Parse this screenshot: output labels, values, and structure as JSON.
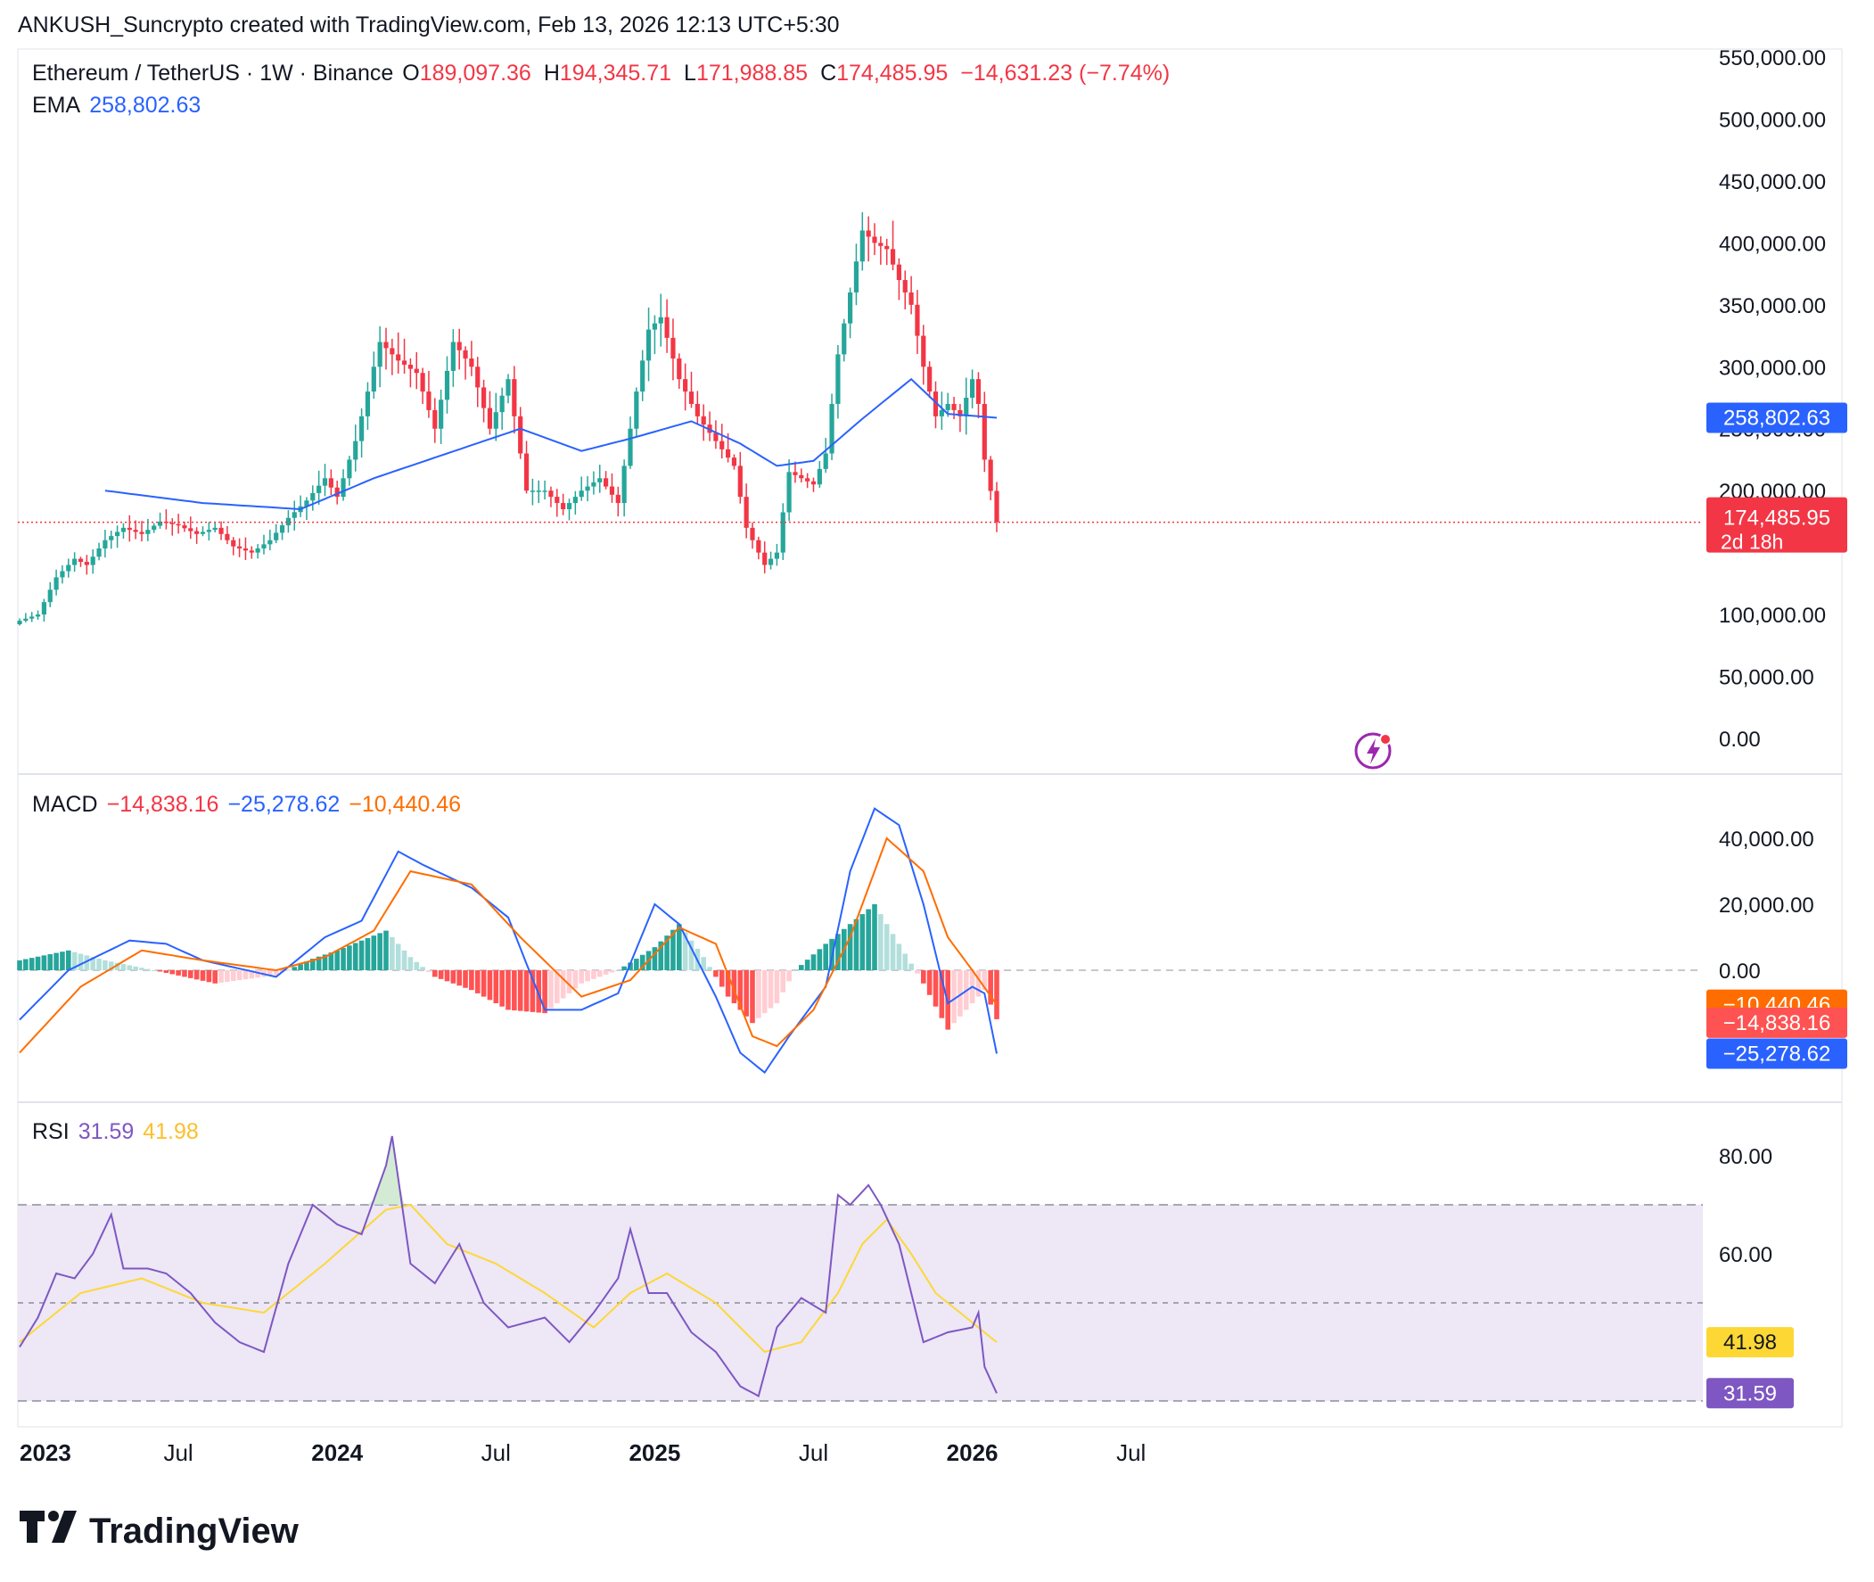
{
  "header": {
    "credit": "ANKUSH_Suncrypto created with TradingView.com, Feb 13, 2026 12:13 UTC+5:30"
  },
  "symbol": {
    "title": "Ethereum / TetherUS · 1W · Binance",
    "open_label": "O",
    "open": "189,097.36",
    "high_label": "H",
    "high": "194,345.71",
    "low_label": "L",
    "low": "171,988.85",
    "close_label": "C",
    "close": "174,485.95",
    "change": "−14,631.23 (−7.74%)"
  },
  "ema_legend": {
    "label": "EMA",
    "value": "258,802.63"
  },
  "macd_legend": {
    "label": "MACD",
    "hist": "−14,838.16",
    "macd": "−25,278.62",
    "signal": "−10,440.46"
  },
  "rsi_legend": {
    "label": "RSI",
    "rsi": "31.59",
    "ma": "41.98"
  },
  "price_badges": {
    "ema": "258,802.63",
    "last": "174,485.95",
    "countdown": "2d 18h"
  },
  "macd_badges": {
    "signal": "−10,440.46",
    "hist": "−14,838.16",
    "macd": "−25,278.62"
  },
  "rsi_badges": {
    "ma": "41.98",
    "rsi": "31.59"
  },
  "brand": {
    "name": "TradingView"
  },
  "colors": {
    "up": "#26a69a",
    "down": "#f23645",
    "ema": "#2962ff",
    "macd": "#2962ff",
    "signal": "#ff6d00",
    "rsi": "#7e57c2",
    "rsi_ma": "#fdd835",
    "rsi_band": "#ede7f6",
    "hist_up_strong": "#26a69a",
    "hist_up_weak": "#b2dfdb",
    "hist_down_strong": "#ff5252",
    "hist_down_weak": "#ffcdd2"
  },
  "chart_data": [
    {
      "type": "candlestick",
      "title": "Ethereum / TetherUS · 1W · Binance",
      "ylim": [
        0,
        550000
      ],
      "y_ticks": [
        "550,000.00",
        "500,000.00",
        "450,000.00",
        "400,000.00",
        "350,000.00",
        "300,000.00",
        "250,000.00",
        "200,000.00",
        "100,000.00",
        "50,000.00",
        "0.00"
      ],
      "y_tick_values": [
        550000,
        500000,
        450000,
        400000,
        350000,
        300000,
        250000,
        200000,
        100000,
        50000,
        0
      ],
      "x_ticks": [
        "2023",
        "Jul",
        "2024",
        "Jul",
        "2025",
        "Jul",
        "2026",
        "Jul"
      ],
      "x_tick_bold": [
        true,
        false,
        true,
        false,
        true,
        false,
        true,
        false
      ],
      "x_tick_week": [
        0,
        26,
        52,
        78,
        104,
        130,
        156,
        182
      ],
      "last_price": 174485.95,
      "close_anchors": [
        [
          0,
          95000
        ],
        [
          3,
          100000
        ],
        [
          6,
          130000
        ],
        [
          9,
          145000
        ],
        [
          11,
          140000
        ],
        [
          14,
          160000
        ],
        [
          17,
          170000
        ],
        [
          20,
          165000
        ],
        [
          23,
          175000
        ],
        [
          26,
          172000
        ],
        [
          29,
          165000
        ],
        [
          32,
          170000
        ],
        [
          35,
          155000
        ],
        [
          38,
          150000
        ],
        [
          41,
          160000
        ],
        [
          44,
          178000
        ],
        [
          47,
          192000
        ],
        [
          50,
          210000
        ],
        [
          52,
          195000
        ],
        [
          55,
          240000
        ],
        [
          57,
          280000
        ],
        [
          59,
          320000
        ],
        [
          62,
          305000
        ],
        [
          65,
          295000
        ],
        [
          68,
          250000
        ],
        [
          71,
          320000
        ],
        [
          74,
          300000
        ],
        [
          77,
          250000
        ],
        [
          80,
          290000
        ],
        [
          83,
          200000
        ],
        [
          86,
          200000
        ],
        [
          89,
          185000
        ],
        [
          92,
          200000
        ],
        [
          95,
          210000
        ],
        [
          98,
          190000
        ],
        [
          101,
          280000
        ],
        [
          103,
          330000
        ],
        [
          105,
          340000
        ],
        [
          108,
          290000
        ],
        [
          111,
          260000
        ],
        [
          114,
          240000
        ],
        [
          117,
          220000
        ],
        [
          119,
          170000
        ],
        [
          122,
          140000
        ],
        [
          124,
          150000
        ],
        [
          126,
          215000
        ],
        [
          128,
          210000
        ],
        [
          130,
          205000
        ],
        [
          132,
          230000
        ],
        [
          134,
          310000
        ],
        [
          136,
          360000
        ],
        [
          138,
          410000
        ],
        [
          140,
          400000
        ],
        [
          142,
          395000
        ],
        [
          144,
          370000
        ],
        [
          146,
          350000
        ],
        [
          148,
          300000
        ],
        [
          150,
          260000
        ],
        [
          152,
          270000
        ],
        [
          154,
          260000
        ],
        [
          156,
          290000
        ],
        [
          157,
          270000
        ],
        [
          158,
          225000
        ],
        [
          160,
          174485.95
        ]
      ],
      "ema_anchors": [
        [
          14,
          200000
        ],
        [
          30,
          190000
        ],
        [
          46,
          185000
        ],
        [
          58,
          210000
        ],
        [
          70,
          230000
        ],
        [
          82,
          250000
        ],
        [
          92,
          232000
        ],
        [
          100,
          242000
        ],
        [
          110,
          256000
        ],
        [
          118,
          238000
        ],
        [
          124,
          220000
        ],
        [
          130,
          224000
        ],
        [
          138,
          258000
        ],
        [
          146,
          290000
        ],
        [
          152,
          262000
        ],
        [
          160,
          258802.63
        ]
      ]
    },
    {
      "type": "line",
      "title": "MACD",
      "ylim": [
        -35000,
        48000
      ],
      "y_ticks": [
        "40,000.00",
        "20,000.00",
        "0.00"
      ],
      "y_tick_values": [
        40000,
        20000,
        0
      ],
      "series": [
        {
          "name": "MACD",
          "anchors": [
            [
              0,
              -15000
            ],
            [
              8,
              0
            ],
            [
              18,
              9000
            ],
            [
              24,
              8000
            ],
            [
              30,
              3000
            ],
            [
              42,
              -2000
            ],
            [
              50,
              10000
            ],
            [
              56,
              15000
            ],
            [
              62,
              36000
            ],
            [
              66,
              32000
            ],
            [
              74,
              25000
            ],
            [
              80,
              16000
            ],
            [
              86,
              -12000
            ],
            [
              92,
              -12000
            ],
            [
              98,
              -7000
            ],
            [
              104,
              20000
            ],
            [
              108,
              14000
            ],
            [
              114,
              -8000
            ],
            [
              118,
              -25000
            ],
            [
              122,
              -31000
            ],
            [
              126,
              -20000
            ],
            [
              132,
              -5000
            ],
            [
              136,
              30000
            ],
            [
              140,
              49000
            ],
            [
              144,
              44000
            ],
            [
              148,
              20000
            ],
            [
              152,
              -10000
            ],
            [
              156,
              -5000
            ],
            [
              158,
              -7000
            ],
            [
              160,
              -25278.62
            ]
          ]
        },
        {
          "name": "Signal",
          "anchors": [
            [
              0,
              -25000
            ],
            [
              10,
              -5000
            ],
            [
              20,
              6000
            ],
            [
              30,
              3000
            ],
            [
              42,
              0
            ],
            [
              50,
              4000
            ],
            [
              58,
              12000
            ],
            [
              64,
              30000
            ],
            [
              74,
              26000
            ],
            [
              82,
              10000
            ],
            [
              92,
              -8000
            ],
            [
              100,
              -3000
            ],
            [
              108,
              13000
            ],
            [
              114,
              8000
            ],
            [
              120,
              -20000
            ],
            [
              124,
              -23000
            ],
            [
              130,
              -12000
            ],
            [
              136,
              10000
            ],
            [
              142,
              40000
            ],
            [
              148,
              30000
            ],
            [
              152,
              10000
            ],
            [
              156,
              0
            ],
            [
              160,
              -10440.46
            ]
          ]
        }
      ],
      "hist_anchors": [
        [
          0,
          3000
        ],
        [
          8,
          6000
        ],
        [
          14,
          3000
        ],
        [
          22,
          0
        ],
        [
          32,
          -4000
        ],
        [
          42,
          -1500
        ],
        [
          48,
          3500
        ],
        [
          52,
          6000
        ],
        [
          56,
          9000
        ],
        [
          60,
          12000
        ],
        [
          64,
          4000
        ],
        [
          68,
          -2000
        ],
        [
          74,
          -6000
        ],
        [
          80,
          -12000
        ],
        [
          86,
          -13000
        ],
        [
          92,
          -4000
        ],
        [
          98,
          0
        ],
        [
          104,
          7000
        ],
        [
          108,
          14000
        ],
        [
          112,
          4000
        ],
        [
          116,
          -8000
        ],
        [
          120,
          -16000
        ],
        [
          124,
          -10000
        ],
        [
          127,
          0
        ],
        [
          132,
          8000
        ],
        [
          136,
          14000
        ],
        [
          140,
          20000
        ],
        [
          144,
          8000
        ],
        [
          148,
          -4000
        ],
        [
          152,
          -18000
        ],
        [
          156,
          -10000
        ],
        [
          158,
          -6000
        ],
        [
          160,
          -14838.16
        ]
      ]
    },
    {
      "type": "line",
      "title": "RSI",
      "ylim": [
        20,
        90
      ],
      "y_ticks": [
        "80.00",
        "60.00"
      ],
      "y_tick_values": [
        80,
        60
      ],
      "band": [
        30,
        70
      ],
      "mid": 50,
      "series": [
        {
          "name": "RSI",
          "anchors": [
            [
              0,
              41
            ],
            [
              3,
              47
            ],
            [
              6,
              56
            ],
            [
              9,
              55
            ],
            [
              12,
              60
            ],
            [
              15,
              68
            ],
            [
              17,
              57
            ],
            [
              21,
              57
            ],
            [
              24,
              56
            ],
            [
              28,
              52
            ],
            [
              32,
              46
            ],
            [
              36,
              42
            ],
            [
              40,
              40
            ],
            [
              44,
              58
            ],
            [
              48,
              70
            ],
            [
              52,
              66
            ],
            [
              56,
              64
            ],
            [
              60,
              78
            ],
            [
              61,
              84
            ],
            [
              64,
              58
            ],
            [
              68,
              54
            ],
            [
              72,
              62
            ],
            [
              76,
              50
            ],
            [
              80,
              45
            ],
            [
              86,
              47
            ],
            [
              90,
              42
            ],
            [
              94,
              48
            ],
            [
              98,
              55
            ],
            [
              100,
              65
            ],
            [
              103,
              52
            ],
            [
              106,
              52
            ],
            [
              110,
              44
            ],
            [
              114,
              40
            ],
            [
              118,
              33
            ],
            [
              121,
              31
            ],
            [
              124,
              45
            ],
            [
              128,
              51
            ],
            [
              132,
              48
            ],
            [
              134,
              72
            ],
            [
              136,
              70
            ],
            [
              139,
              74
            ],
            [
              141,
              70
            ],
            [
              144,
              62
            ],
            [
              148,
              42
            ],
            [
              152,
              44
            ],
            [
              156,
              45
            ],
            [
              157,
              48
            ],
            [
              158,
              37
            ],
            [
              160,
              31.59
            ]
          ]
        },
        {
          "name": "RSI-based MA",
          "anchors": [
            [
              0,
              42
            ],
            [
              10,
              52
            ],
            [
              20,
              55
            ],
            [
              30,
              50
            ],
            [
              40,
              48
            ],
            [
              50,
              58
            ],
            [
              60,
              69
            ],
            [
              64,
              70
            ],
            [
              70,
              62
            ],
            [
              78,
              58
            ],
            [
              86,
              52
            ],
            [
              94,
              45
            ],
            [
              100,
              52
            ],
            [
              106,
              56
            ],
            [
              114,
              50
            ],
            [
              122,
              40
            ],
            [
              128,
              42
            ],
            [
              134,
              52
            ],
            [
              138,
              62
            ],
            [
              142,
              67
            ],
            [
              146,
              60
            ],
            [
              150,
              52
            ],
            [
              154,
              48
            ],
            [
              160,
              41.98
            ]
          ]
        }
      ]
    }
  ]
}
